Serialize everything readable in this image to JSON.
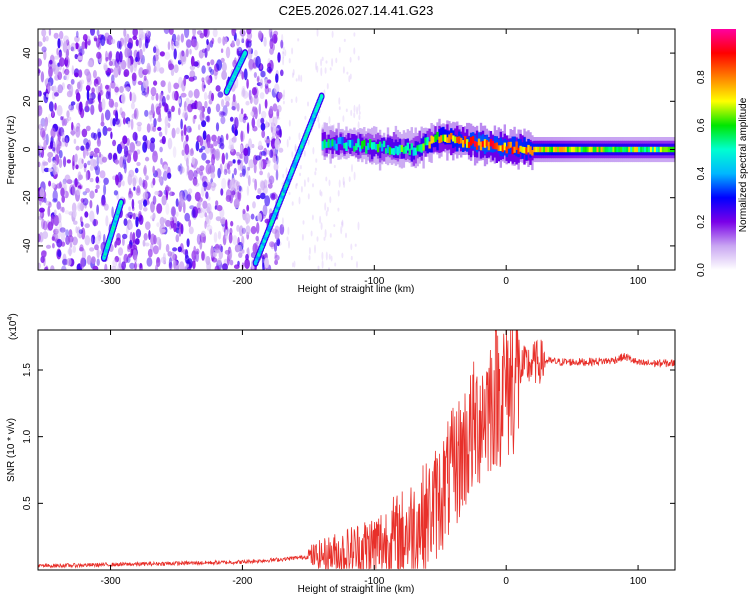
{
  "title": "C2E5.2026.027.14.41.G23",
  "chart_data": [
    {
      "type": "heatmap",
      "xlabel": "Height of straight line (km)",
      "ylabel": "Frequency (Hz)",
      "xlim": [
        -355,
        128
      ],
      "ylim": [
        -50,
        50
      ],
      "x_ticks": [
        -300,
        -200,
        -100,
        0,
        100
      ],
      "y_ticks": [
        -40,
        -20,
        0,
        20,
        40
      ],
      "colorbar": {
        "label": "Normalized spectral amplitude",
        "range": [
          0,
          1
        ],
        "ticks": [
          "0.0",
          "0.2",
          "0.4",
          "0.6",
          "0.8"
        ],
        "colors": [
          "#ffffff",
          "#c9a6f2",
          "#7a00e8",
          "#0000ff",
          "#00b7ff",
          "#00ffd0",
          "#00e600",
          "#ffff00",
          "#ff8000",
          "#ff0000",
          "#ff00a0"
        ]
      },
      "features": {
        "noise_region_x": [
          -355,
          -170
        ],
        "diagonal_lines": [
          {
            "x": [
              -305,
              -292
            ],
            "y": [
              -45,
              -22
            ]
          },
          {
            "x": [
              -212,
              -198
            ],
            "y": [
              24,
              40
            ]
          },
          {
            "x": [
              -190,
              -140
            ],
            "y": [
              -47,
              22
            ]
          }
        ],
        "signal_band": {
          "x": [
            -140,
            -100,
            -70,
            -50,
            -20,
            0,
            20,
            60,
            128
          ],
          "y": [
            3,
            1,
            0,
            5,
            2,
            1,
            0,
            0,
            0
          ],
          "amplitude": [
            0.45,
            0.5,
            0.55,
            0.7,
            0.85,
            0.8,
            0.75,
            0.65,
            0.6
          ]
        }
      }
    },
    {
      "type": "line",
      "xlabel": "Height of straight line (km)",
      "ylabel": "SNR (10 * v/v)",
      "exponent_label": "(x10",
      "exponent_power": "4",
      "exponent_close": ")",
      "xlim": [
        -355,
        128
      ],
      "ylim": [
        0,
        1.8
      ],
      "x_ticks": [
        -300,
        -200,
        -100,
        0,
        100
      ],
      "y_ticks": [
        "0.5",
        "1.0",
        "1.5"
      ],
      "y_tick_values": [
        0.5,
        1.0,
        1.5
      ],
      "color": "#e8302a",
      "series": [
        {
          "x": [
            -355,
            -300,
            -250,
            -200,
            -170,
            -150,
            -120,
            -100,
            -80,
            -60,
            -50,
            -40,
            -30,
            -20,
            -10,
            0,
            10,
            20,
            30,
            40,
            60,
            80,
            90,
            95,
            100,
            128
          ],
          "y": [
            0.03,
            0.04,
            0.05,
            0.06,
            0.08,
            0.1,
            0.13,
            0.17,
            0.25,
            0.4,
            0.55,
            0.75,
            0.95,
            1.15,
            1.3,
            1.38,
            1.5,
            1.55,
            1.57,
            1.56,
            1.56,
            1.57,
            1.6,
            1.58,
            1.55,
            1.55
          ]
        }
      ]
    }
  ]
}
